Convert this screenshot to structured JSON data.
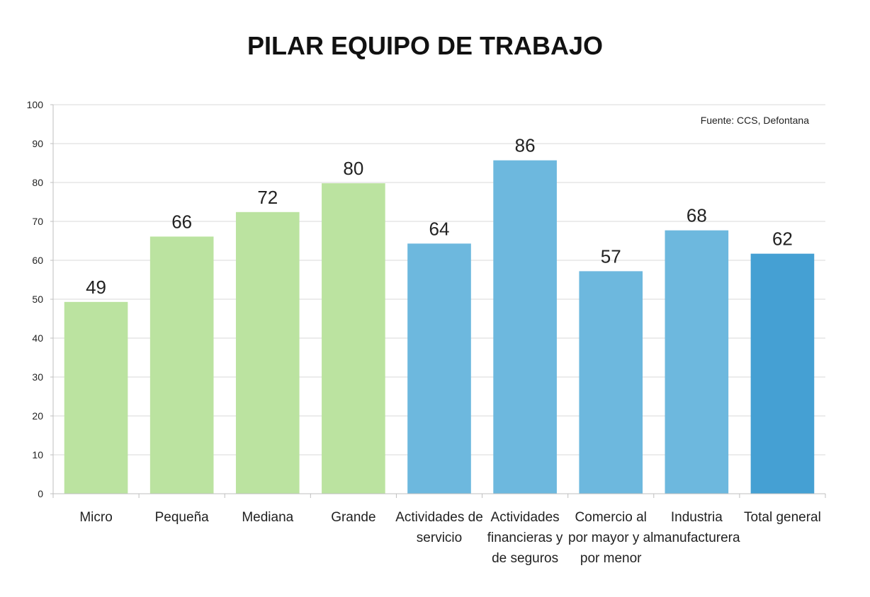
{
  "chart_data": {
    "type": "bar",
    "title": "PILAR EQUIPO DE TRABAJO",
    "source": "Fuente: CCS, Defontana",
    "xlabel": "",
    "ylabel": "",
    "ylim": [
      0,
      100
    ],
    "yticks": [
      "0",
      "10",
      "20",
      "30",
      "40",
      "50",
      "60",
      "70",
      "80",
      "90",
      "100"
    ],
    "grid": true,
    "categories": [
      [
        "Micro"
      ],
      [
        "Pequeña"
      ],
      [
        "Mediana"
      ],
      [
        "Grande"
      ],
      [
        "Actividades de",
        "servicio"
      ],
      [
        "Actividades",
        "financieras y",
        "de seguros"
      ],
      [
        "Comercio al",
        "por mayor y al",
        "por menor"
      ],
      [
        "Industria",
        "manufacturera"
      ],
      [
        "Total general"
      ]
    ],
    "values": [
      49.3,
      66.1,
      72.4,
      79.8,
      64.3,
      85.7,
      57.2,
      67.7,
      61.7
    ],
    "labels": [
      "49",
      "66",
      "72",
      "80",
      "64",
      "86",
      "57",
      "68",
      "62"
    ],
    "groups": [
      "size",
      "size",
      "size",
      "size",
      "sector",
      "sector",
      "sector",
      "sector",
      "total"
    ]
  },
  "colors": {
    "size": "#bbe3a0",
    "sector": "#6db8de",
    "total": "#45a0d3",
    "grid": "#d9d9d9",
    "axis": "#bfbfbf"
  }
}
